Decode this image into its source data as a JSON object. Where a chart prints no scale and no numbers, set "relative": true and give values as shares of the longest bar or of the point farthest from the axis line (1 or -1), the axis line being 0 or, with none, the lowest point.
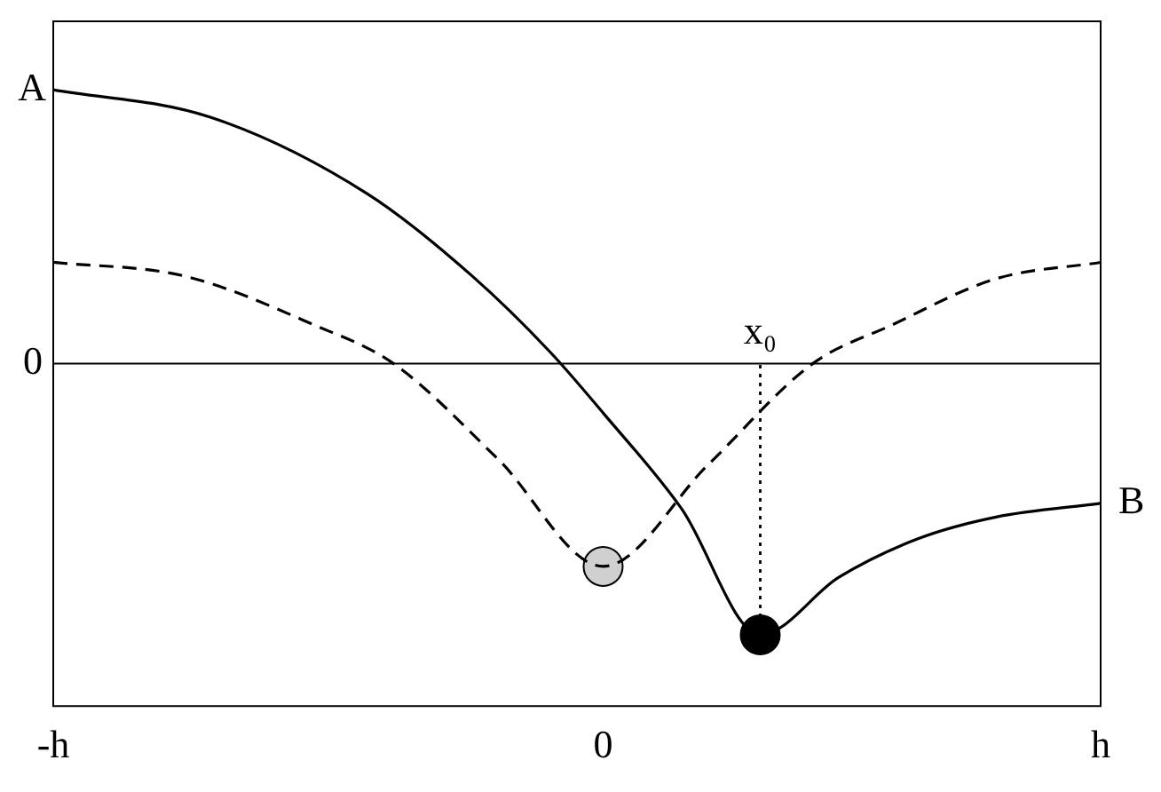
{
  "chart_data": {
    "type": "line",
    "relative": true,
    "categories": [
      "-h",
      null,
      null,
      null,
      null,
      null,
      null,
      null,
      null,
      null,
      null,
      null,
      null,
      null,
      null,
      null,
      null,
      null,
      null,
      null,
      null,
      "0",
      null,
      null,
      null,
      null,
      null,
      null,
      null,
      null,
      null,
      null,
      null,
      null,
      null,
      null,
      null,
      null,
      null,
      null,
      "h"
    ],
    "tick_labels": "x",
    "grid": false,
    "legend": false,
    "series": [
      {
        "color": "#000000",
        "line_style": "solid",
        "marker": "none",
        "values": [
          1,
          null,
          null,
          null,
          null,
          null,
          0.9,
          null,
          null,
          null,
          null,
          null,
          0.62,
          null,
          null,
          null,
          0.32,
          null,
          null,
          0.04,
          null,
          -0.18,
          null,
          null,
          -0.53,
          null,
          null,
          -0.99,
          null,
          null,
          -0.78,
          null,
          null,
          -0.64,
          null,
          null,
          -0.56,
          null,
          null,
          null,
          -0.51
        ]
      },
      {
        "color": "#000000",
        "line_style": "dashed",
        "marker": "none",
        "values": [
          0.37,
          null,
          null,
          null,
          null,
          0.32,
          null,
          null,
          null,
          null,
          0.14,
          null,
          null,
          0,
          null,
          null,
          null,
          -0.35,
          null,
          null,
          null,
          -0.74,
          null,
          null,
          null,
          -0.37,
          null,
          null,
          null,
          0,
          null,
          null,
          0.14,
          null,
          null,
          null,
          0.31,
          null,
          null,
          null,
          0.37
        ]
      },
      {
        "type": "scatter",
        "color": "#d0d0d0",
        "marker": "circle",
        "values": [
          null,
          null,
          null,
          null,
          null,
          null,
          null,
          null,
          null,
          null,
          null,
          null,
          null,
          null,
          null,
          null,
          null,
          null,
          null,
          null,
          null,
          -0.74,
          null,
          null,
          null,
          null,
          null,
          null,
          null,
          null,
          null,
          null,
          null,
          null,
          null,
          null,
          null,
          null,
          null,
          null,
          null
        ]
      },
      {
        "type": "scatter",
        "color": "#000000",
        "marker": "circle",
        "values": [
          null,
          null,
          null,
          null,
          null,
          null,
          null,
          null,
          null,
          null,
          null,
          null,
          null,
          null,
          null,
          null,
          null,
          null,
          null,
          null,
          null,
          null,
          null,
          null,
          null,
          null,
          null,
          -0.99,
          null,
          null,
          null,
          null,
          null,
          null,
          null,
          null,
          null,
          null,
          null,
          null,
          null
        ]
      }
    ],
    "ref_lines": [
      {
        "axis": "y",
        "value": 0,
        "label": "0"
      }
    ],
    "annotations": [
      {
        "text": "A",
        "x": "-h",
        "y": 1
      },
      {
        "text": "B",
        "x": "h",
        "y": -0.51
      },
      {
        "text": "x₀",
        "y": 0
      }
    ]
  }
}
